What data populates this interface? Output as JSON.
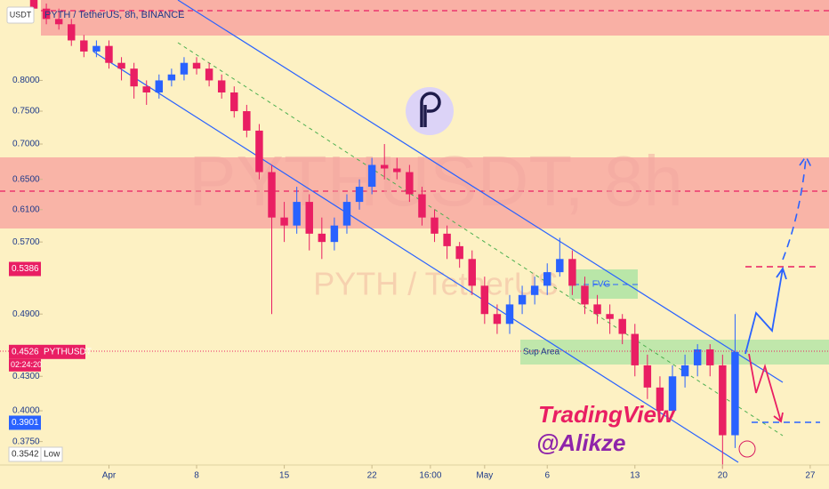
{
  "chart_data": {
    "type": "candlestick",
    "header": "PYTH / TetherUS, 8h, BINANCE",
    "watermark": "PYTHUSDT, 8h",
    "watermark_sub": "PYTH / TetherUS",
    "currency": "USDT",
    "log_scale": true,
    "up_color": "#2962ff",
    "down_color": "#e91e63",
    "ylim": [
      0.357,
      0.947
    ],
    "yticks": [
      {
        "value": 0.8,
        "label": "0.8000"
      },
      {
        "value": 0.75,
        "label": "0.7500"
      },
      {
        "value": 0.7,
        "label": "0.7000"
      },
      {
        "value": 0.65,
        "label": "0.6500"
      },
      {
        "value": 0.61,
        "label": "0.6100"
      },
      {
        "value": 0.57,
        "label": "0.5700"
      },
      {
        "value": 0.49,
        "label": "0.4900"
      },
      {
        "value": 0.43,
        "label": "0.4300"
      },
      {
        "value": 0.4,
        "label": "0.4000"
      },
      {
        "value": 0.375,
        "label": "0.3750"
      }
    ],
    "xlim": [
      -8.7,
      57.5
    ],
    "xticks": [
      {
        "value": 0,
        "label": "Apr"
      },
      {
        "value": 7,
        "label": "8"
      },
      {
        "value": 14,
        "label": "15"
      },
      {
        "value": 21,
        "label": "22"
      },
      {
        "value": 25.67,
        "label": "16:00"
      },
      {
        "value": 30,
        "label": "May"
      },
      {
        "value": 35,
        "label": "6"
      },
      {
        "value": 42,
        "label": "13"
      },
      {
        "value": 49,
        "label": "20"
      },
      {
        "value": 56,
        "label": "27"
      }
    ],
    "x": [
      -6,
      -5,
      -4,
      -3,
      -2,
      -1,
      0,
      1,
      2,
      3,
      4,
      5,
      6,
      7,
      8,
      9,
      10,
      11,
      12,
      13,
      14,
      15,
      16,
      17,
      18,
      19,
      20,
      21,
      22,
      23,
      24,
      25,
      26,
      27,
      28,
      29,
      30,
      31,
      32,
      33,
      34,
      35,
      36,
      37,
      38,
      39,
      40,
      41,
      42,
      43,
      44,
      45,
      46,
      47,
      48,
      49,
      50
    ],
    "open": [
      0.95,
      0.93,
      0.91,
      0.9,
      0.87,
      0.85,
      0.86,
      0.83,
      0.82,
      0.79,
      0.78,
      0.8,
      0.81,
      0.83,
      0.82,
      0.8,
      0.78,
      0.75,
      0.72,
      0.66,
      0.6,
      0.59,
      0.62,
      0.58,
      0.57,
      0.59,
      0.62,
      0.64,
      0.67,
      0.665,
      0.66,
      0.63,
      0.6,
      0.58,
      0.565,
      0.55,
      0.52,
      0.49,
      0.48,
      0.5,
      0.51,
      0.52,
      0.535,
      0.55,
      0.52,
      0.5,
      0.49,
      0.485,
      0.47,
      0.44,
      0.42,
      0.4,
      0.43,
      0.44,
      0.455,
      0.44,
      0.38
    ],
    "high": [
      0.96,
      0.94,
      0.93,
      0.91,
      0.88,
      0.87,
      0.87,
      0.84,
      0.83,
      0.8,
      0.81,
      0.82,
      0.84,
      0.84,
      0.83,
      0.81,
      0.79,
      0.76,
      0.73,
      0.67,
      0.62,
      0.64,
      0.63,
      0.6,
      0.6,
      0.63,
      0.65,
      0.68,
      0.7,
      0.68,
      0.67,
      0.64,
      0.61,
      0.59,
      0.57,
      0.56,
      0.53,
      0.5,
      0.51,
      0.52,
      0.53,
      0.545,
      0.575,
      0.56,
      0.53,
      0.51,
      0.5,
      0.49,
      0.48,
      0.45,
      0.43,
      0.44,
      0.45,
      0.46,
      0.46,
      0.45,
      0.49
    ],
    "low": [
      0.92,
      0.9,
      0.89,
      0.86,
      0.84,
      0.84,
      0.82,
      0.8,
      0.77,
      0.76,
      0.77,
      0.79,
      0.8,
      0.81,
      0.79,
      0.77,
      0.74,
      0.71,
      0.65,
      0.49,
      0.57,
      0.58,
      0.56,
      0.55,
      0.56,
      0.58,
      0.61,
      0.63,
      0.65,
      0.65,
      0.62,
      0.59,
      0.57,
      0.55,
      0.54,
      0.51,
      0.48,
      0.47,
      0.47,
      0.49,
      0.5,
      0.51,
      0.53,
      0.51,
      0.49,
      0.48,
      0.47,
      0.46,
      0.43,
      0.41,
      0.39,
      0.395,
      0.42,
      0.43,
      0.43,
      0.3542,
      0.37
    ],
    "close": [
      0.93,
      0.91,
      0.9,
      0.87,
      0.85,
      0.86,
      0.83,
      0.82,
      0.79,
      0.78,
      0.8,
      0.81,
      0.83,
      0.82,
      0.8,
      0.78,
      0.75,
      0.72,
      0.66,
      0.6,
      0.59,
      0.62,
      0.58,
      0.57,
      0.59,
      0.62,
      0.64,
      0.67,
      0.665,
      0.66,
      0.63,
      0.6,
      0.58,
      0.565,
      0.55,
      0.52,
      0.49,
      0.48,
      0.5,
      0.51,
      0.52,
      0.535,
      0.55,
      0.52,
      0.5,
      0.49,
      0.485,
      0.47,
      0.44,
      0.42,
      0.4,
      0.43,
      0.44,
      0.455,
      0.44,
      0.38,
      0.4526
    ],
    "price_labels": [
      {
        "value": 0.5386,
        "color": "#e91e63"
      },
      {
        "value": 0.4526,
        "name": "PYTHUSDT",
        "countdown": "02:24:20",
        "color": "#e91e63"
      },
      {
        "value": 0.3901,
        "color": "#2962ff"
      },
      {
        "value": 0.3542,
        "name": "Low",
        "color": "#ffffff"
      }
    ],
    "annotations": {
      "fvg": "FVG",
      "support": "Sup Area",
      "brand": "TradingView",
      "author": "@Alikze"
    }
  }
}
